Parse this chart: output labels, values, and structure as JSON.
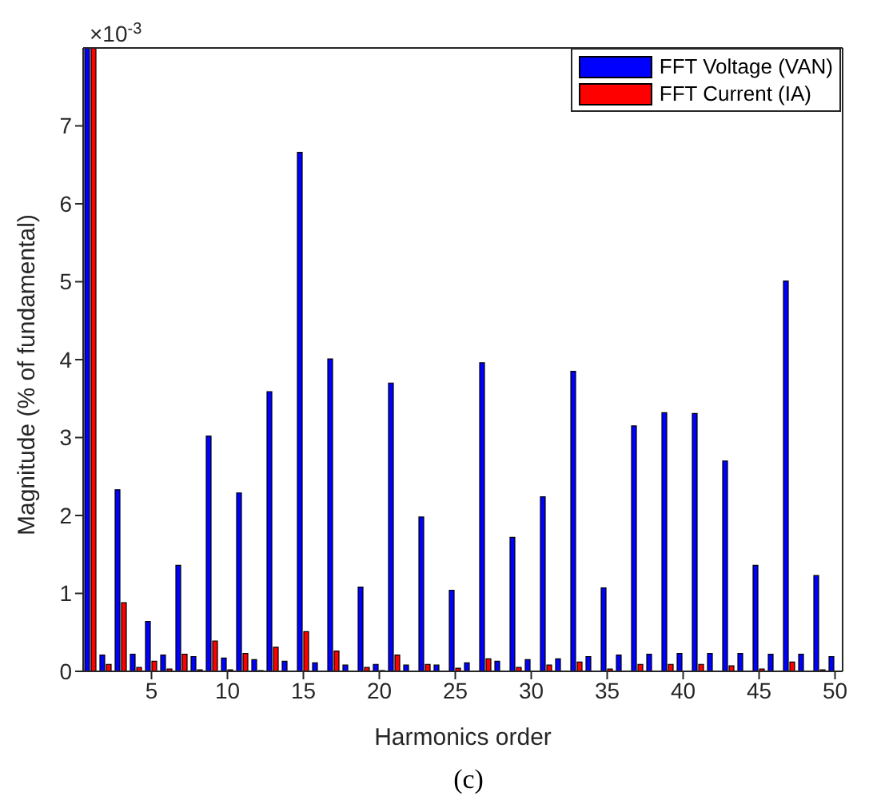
{
  "chart_data": {
    "type": "bar",
    "xlabel": "Harmonics order",
    "ylabel": "Magnitude (% of fundamental)",
    "x": [
      1,
      2,
      3,
      4,
      5,
      6,
      7,
      8,
      9,
      10,
      11,
      12,
      13,
      14,
      15,
      16,
      17,
      18,
      19,
      20,
      21,
      22,
      23,
      24,
      25,
      26,
      27,
      28,
      29,
      30,
      31,
      32,
      33,
      34,
      35,
      36,
      37,
      38,
      39,
      40,
      41,
      42,
      43,
      44,
      45,
      46,
      47,
      48,
      49,
      50
    ],
    "series": [
      {
        "name": "FFT Voltage (VAN)",
        "color": "#0000ff",
        "values": [
          8,
          0.21,
          2.33,
          0.22,
          0.64,
          0.21,
          1.36,
          0.19,
          3.02,
          0.17,
          2.29,
          0.15,
          3.59,
          0.13,
          6.66,
          0.11,
          4.01,
          0.08,
          1.08,
          0.09,
          3.7,
          0.08,
          1.98,
          0.08,
          1.04,
          0.11,
          3.96,
          0.13,
          1.72,
          0.15,
          2.24,
          0.16,
          3.85,
          0.19,
          1.07,
          0.21,
          3.15,
          0.22,
          3.32,
          0.23,
          3.31,
          0.23,
          2.7,
          0.23,
          1.36,
          0.22,
          5.01,
          0.22,
          1.23,
          0.19
        ]
      },
      {
        "name": "FFT Current (IA)",
        "color": "#ff0000",
        "values": [
          8,
          0.09,
          0.88,
          0.05,
          0.13,
          0.03,
          0.22,
          0.02,
          0.39,
          0.02,
          0.23,
          0.01,
          0.31,
          0,
          0.51,
          0,
          0.26,
          0,
          0.05,
          0.01,
          0.21,
          0,
          0.09,
          0,
          0.04,
          0,
          0.16,
          0,
          0.05,
          0,
          0.08,
          0,
          0.12,
          0,
          0.03,
          0,
          0.09,
          0,
          0.09,
          0,
          0.09,
          0,
          0.07,
          0,
          0.03,
          0,
          0.12,
          0,
          0.02,
          0
        ]
      }
    ],
    "xlim": [
      0.5,
      50.5
    ],
    "xticks": [
      5,
      10,
      15,
      20,
      25,
      30,
      35,
      40,
      45,
      50
    ],
    "ylim": [
      0,
      8
    ],
    "yticks": [
      0,
      1,
      2,
      3,
      4,
      5,
      6,
      7
    ],
    "annotations": [
      "×10$^{-3}$",
      "(c)"
    ],
    "legend": "top right",
    "grid": false
  }
}
